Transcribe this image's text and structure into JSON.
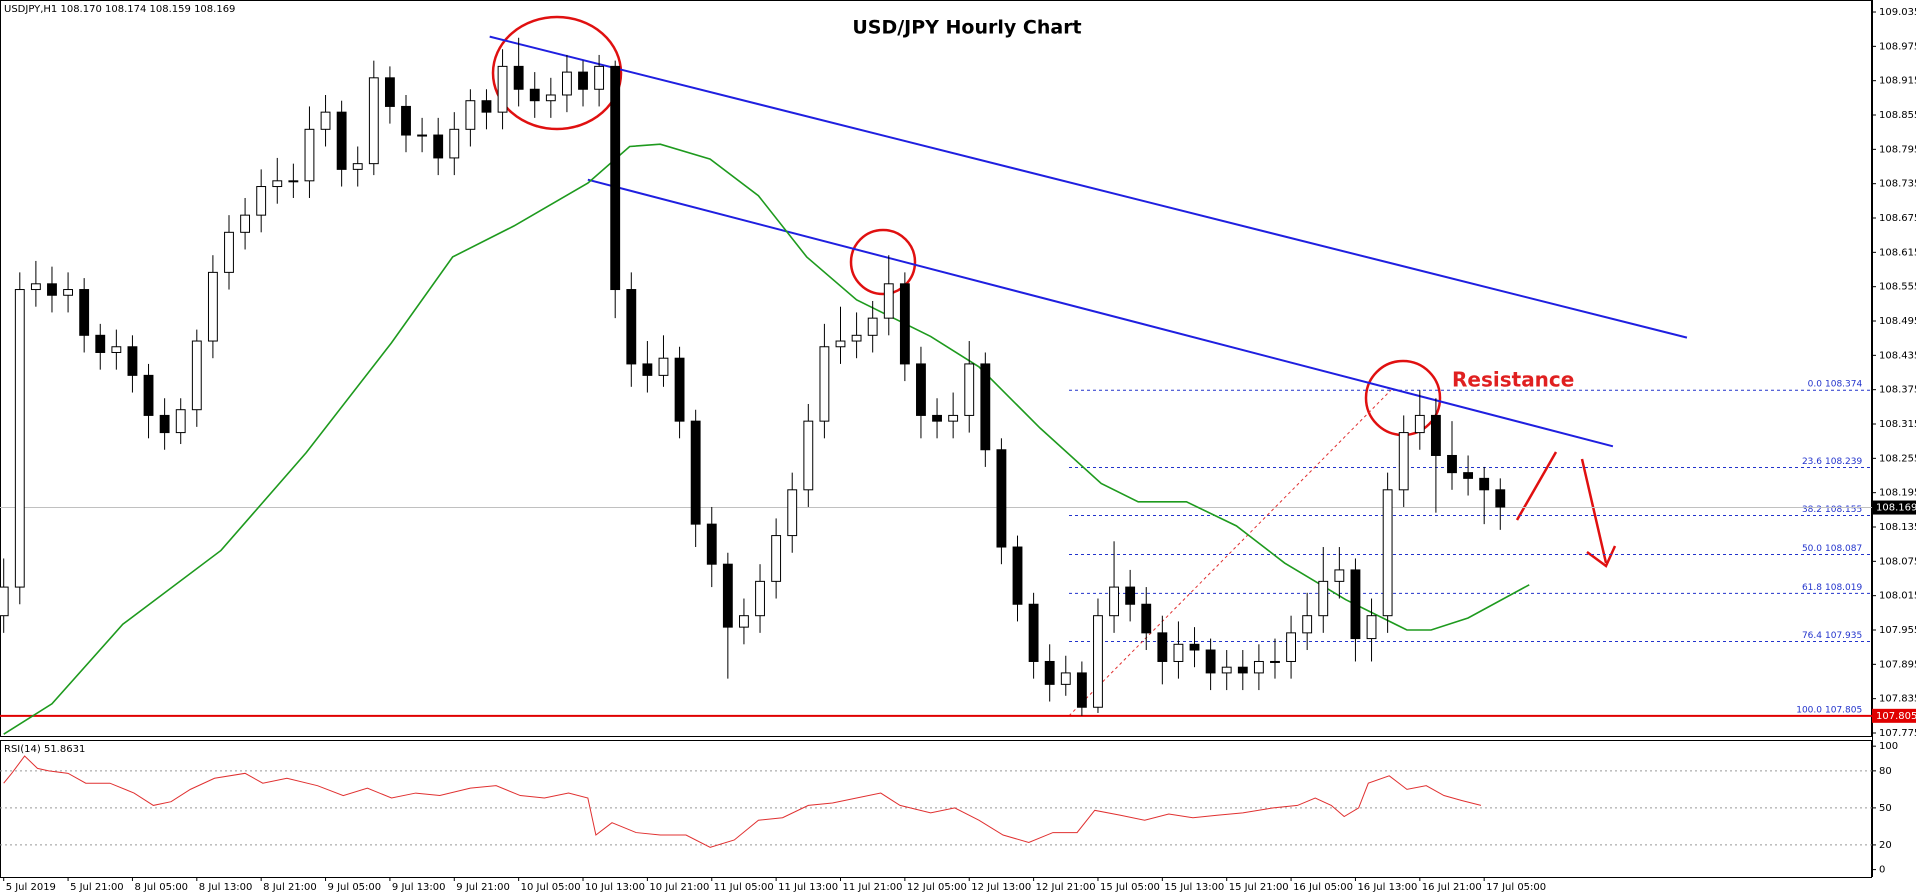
{
  "chart_data": {
    "type": "candlestick",
    "title": "USD/JPY Hourly Chart",
    "header": "USDJPY,H1  108.170 108.174 108.159 108.169",
    "x": [
      0,
      1,
      2,
      3,
      4,
      5,
      6,
      7,
      8,
      9,
      10,
      11,
      12,
      13,
      14,
      15,
      16,
      17,
      18,
      19,
      20,
      21,
      22,
      23,
      24,
      25,
      26,
      27,
      28,
      29,
      30,
      31,
      32,
      33,
      34,
      35,
      36,
      37,
      38,
      39,
      40,
      41,
      42,
      43,
      44,
      45,
      46,
      47,
      48,
      49,
      50,
      51,
      52,
      53,
      54,
      55,
      56,
      57,
      58,
      59,
      60,
      61,
      62,
      63,
      64,
      65,
      66,
      67,
      68,
      69,
      70,
      71,
      72,
      73,
      74,
      75,
      76,
      77,
      78,
      79,
      80,
      81,
      82,
      83,
      84,
      85,
      86,
      87,
      88,
      89,
      90,
      91,
      92,
      93
    ],
    "open": [
      107.98,
      108.03,
      108.55,
      108.56,
      108.54,
      108.55,
      108.47,
      108.44,
      108.45,
      108.4,
      108.33,
      108.3,
      108.34,
      108.46,
      108.58,
      108.65,
      108.68,
      108.73,
      108.74,
      108.74,
      108.83,
      108.86,
      108.76,
      108.77,
      108.92,
      108.87,
      108.82,
      108.82,
      108.78,
      108.83,
      108.88,
      108.86,
      108.94,
      108.9,
      108.88,
      108.89,
      108.93,
      108.9,
      108.94,
      108.55,
      108.42,
      108.4,
      108.43,
      108.32,
      108.14,
      108.07,
      107.96,
      107.98,
      108.04,
      108.12,
      108.2,
      108.32,
      108.45,
      108.46,
      108.47,
      108.5,
      108.56,
      108.42,
      108.33,
      108.32,
      108.33,
      108.42,
      108.27,
      108.1,
      108.0,
      107.9,
      107.86,
      107.88,
      107.82,
      107.98,
      108.03,
      108.0,
      107.95,
      107.9,
      107.93,
      107.92,
      107.88,
      107.89,
      107.88,
      107.9,
      107.9,
      107.95,
      107.98,
      108.04,
      108.06,
      107.94,
      107.98,
      108.2,
      108.3,
      108.33,
      108.26,
      108.23,
      108.22,
      108.2
    ],
    "high": [
      108.08,
      108.58,
      108.6,
      108.59,
      108.58,
      108.57,
      108.49,
      108.48,
      108.47,
      108.42,
      108.36,
      108.36,
      108.48,
      108.61,
      108.68,
      108.71,
      108.76,
      108.78,
      108.77,
      108.87,
      108.89,
      108.88,
      108.8,
      108.95,
      108.94,
      108.89,
      108.85,
      108.85,
      108.86,
      108.9,
      108.9,
      108.97,
      108.99,
      108.93,
      108.92,
      108.96,
      108.95,
      108.96,
      108.95,
      108.58,
      108.46,
      108.47,
      108.45,
      108.34,
      108.17,
      108.09,
      108.01,
      108.07,
      108.15,
      108.23,
      108.35,
      108.49,
      108.52,
      108.51,
      108.53,
      108.61,
      108.58,
      108.45,
      108.36,
      108.37,
      108.46,
      108.44,
      108.29,
      108.12,
      108.02,
      107.93,
      107.91,
      107.9,
      108.01,
      108.11,
      108.06,
      108.03,
      107.98,
      107.97,
      107.96,
      107.94,
      107.92,
      107.92,
      107.93,
      107.94,
      107.98,
      108.02,
      108.1,
      108.1,
      108.08,
      108.01,
      108.23,
      108.33,
      108.374,
      108.36,
      108.32,
      108.26,
      108.24,
      108.22
    ],
    "low": [
      107.95,
      108.0,
      108.52,
      108.51,
      108.51,
      108.44,
      108.41,
      108.41,
      108.37,
      108.29,
      108.27,
      108.28,
      108.31,
      108.43,
      108.55,
      108.62,
      108.65,
      108.7,
      108.71,
      108.71,
      108.8,
      108.73,
      108.73,
      108.75,
      108.84,
      108.79,
      108.79,
      108.75,
      108.75,
      108.8,
      108.83,
      108.83,
      108.87,
      108.85,
      108.85,
      108.86,
      108.87,
      108.87,
      108.5,
      108.38,
      108.37,
      108.38,
      108.29,
      108.1,
      108.03,
      107.87,
      107.93,
      107.95,
      108.01,
      108.09,
      108.17,
      108.29,
      108.42,
      108.43,
      108.44,
      108.47,
      108.39,
      108.29,
      108.29,
      108.29,
      108.3,
      108.24,
      108.07,
      107.97,
      107.87,
      107.83,
      107.84,
      107.805,
      107.81,
      107.95,
      107.97,
      107.92,
      107.86,
      107.87,
      107.89,
      107.85,
      107.85,
      107.85,
      107.85,
      107.87,
      107.87,
      107.92,
      107.95,
      108.01,
      107.9,
      107.9,
      107.95,
      108.17,
      108.27,
      108.16,
      108.2,
      108.19,
      108.14,
      108.13
    ],
    "close": [
      108.03,
      108.55,
      108.56,
      108.54,
      108.55,
      108.47,
      108.44,
      108.45,
      108.4,
      108.33,
      108.3,
      108.34,
      108.46,
      108.58,
      108.65,
      108.68,
      108.73,
      108.74,
      108.74,
      108.83,
      108.86,
      108.76,
      108.77,
      108.92,
      108.87,
      108.82,
      108.82,
      108.78,
      108.83,
      108.88,
      108.86,
      108.94,
      108.9,
      108.88,
      108.89,
      108.93,
      108.9,
      108.94,
      108.55,
      108.42,
      108.4,
      108.43,
      108.32,
      108.14,
      108.07,
      107.96,
      107.98,
      108.04,
      108.12,
      108.2,
      108.32,
      108.45,
      108.46,
      108.47,
      108.5,
      108.56,
      108.42,
      108.33,
      108.32,
      108.33,
      108.42,
      108.27,
      108.1,
      108.0,
      107.9,
      107.86,
      107.88,
      107.82,
      107.98,
      108.03,
      108.0,
      107.95,
      107.9,
      107.93,
      107.92,
      107.88,
      107.89,
      107.88,
      107.9,
      107.9,
      107.95,
      107.98,
      108.04,
      108.06,
      107.94,
      107.98,
      108.2,
      108.3,
      108.33,
      108.26,
      108.23,
      108.22,
      108.2,
      108.17
    ],
    "up_color": "#ffffff",
    "down_color": "#000000",
    "xlim": [
      -0.23,
      116.1
    ],
    "xticks": [
      {
        "value": 0,
        "label": "5 Jul 2019"
      },
      {
        "value": 4,
        "label": "5 Jul 21:00"
      },
      {
        "value": 8,
        "label": "8 Jul 05:00"
      },
      {
        "value": 12,
        "label": "8 Jul 13:00"
      },
      {
        "value": 16,
        "label": "8 Jul 21:00"
      },
      {
        "value": 20,
        "label": "9 Jul 05:00"
      },
      {
        "value": 24,
        "label": "9 Jul 13:00"
      },
      {
        "value": 28,
        "label": "9 Jul 21:00"
      },
      {
        "value": 32,
        "label": "10 Jul 05:00"
      },
      {
        "value": 36,
        "label": "10 Jul 13:00"
      },
      {
        "value": 40,
        "label": "10 Jul 21:00"
      },
      {
        "value": 44,
        "label": "11 Jul 05:00"
      },
      {
        "value": 48,
        "label": "11 Jul 13:00"
      },
      {
        "value": 52,
        "label": "11 Jul 21:00"
      },
      {
        "value": 56,
        "label": "12 Jul 05:00"
      },
      {
        "value": 60,
        "label": "12 Jul 13:00"
      },
      {
        "value": 64,
        "label": "12 Jul 21:00"
      },
      {
        "value": 68,
        "label": "15 Jul 05:00"
      },
      {
        "value": 72,
        "label": "15 Jul 13:00"
      },
      {
        "value": 76,
        "label": "15 Jul 21:00"
      },
      {
        "value": 80,
        "label": "16 Jul 05:00"
      },
      {
        "value": 84,
        "label": "16 Jul 13:00"
      },
      {
        "value": 88,
        "label": "16 Jul 21:00"
      },
      {
        "value": 92,
        "label": "17 Jul 05:00"
      }
    ],
    "ylim": [
      107.768,
      109.056
    ],
    "yticks": [
      109.035,
      108.975,
      108.915,
      108.855,
      108.795,
      108.735,
      108.675,
      108.615,
      108.555,
      108.495,
      108.435,
      108.375,
      108.315,
      108.255,
      108.195,
      108.135,
      108.075,
      108.015,
      107.955,
      107.895,
      107.835,
      107.775
    ],
    "current_price": 108.169,
    "ma": {
      "color": "#1e9a1e",
      "x": [
        0,
        3,
        7.4,
        13.5,
        18.8,
        24.1,
        27.9,
        31.7,
        36.3,
        38.9,
        40.8,
        43.9,
        46.9,
        49.9,
        53,
        57.6,
        60.6,
        64.4,
        68.2,
        70.5,
        73.5,
        76.6,
        79.6,
        83.4,
        87.2,
        88.7,
        91,
        94.8
      ],
      "values": [
        107.773,
        107.826,
        107.965,
        108.094,
        108.265,
        108.457,
        108.607,
        108.661,
        108.736,
        108.8,
        108.804,
        108.778,
        108.714,
        108.607,
        108.532,
        108.468,
        108.415,
        108.308,
        108.211,
        108.179,
        108.179,
        108.137,
        108.072,
        108.008,
        107.955,
        107.955,
        107.976,
        108.034
      ]
    },
    "trend_color": "#1f1fe0",
    "trendlines": [
      {
        "x": [
          30.2,
          104.6
        ],
        "values": [
          108.992,
          108.466
        ]
      },
      {
        "x": [
          36.3,
          100
        ],
        "values": [
          108.742,
          108.276
        ]
      }
    ],
    "support": {
      "value": 107.805,
      "color": "#e00000"
    },
    "fib": {
      "color": "#2233cc",
      "x": [
        66.2,
        86.2
      ],
      "levels": [
        {
          "label": "0.0",
          "value": 108.374
        },
        {
          "label": "23.6",
          "value": 108.239
        },
        {
          "label": "38.2",
          "value": 108.155
        },
        {
          "label": "50.0",
          "value": 108.087
        },
        {
          "label": "61.8",
          "value": 108.019
        },
        {
          "label": "76.4",
          "value": 107.935
        },
        {
          "label": "100.0",
          "value": 107.805
        }
      ]
    },
    "annotation": "Resistance",
    "rsi": {
      "label": "RSI(14) 51.8631",
      "color": "#e03030",
      "x": [
        0,
        0.5,
        1.3,
        2.1,
        2.8,
        4.0,
        5.1,
        6.6,
        8.1,
        9.3,
        10.4,
        11.6,
        13.1,
        15.0,
        16.1,
        17.6,
        19.5,
        21.1,
        22.6,
        24.1,
        25.6,
        27.1,
        29.0,
        30.6,
        32.1,
        33.6,
        35.1,
        36.3,
        36.8,
        37.8,
        39.3,
        40.8,
        42.4,
        43.9,
        45.4,
        46.9,
        48.4,
        50.0,
        51.5,
        53.0,
        54.5,
        55.7,
        57.6,
        59.1,
        60.6,
        62.1,
        63.7,
        65.2,
        66.7,
        67.8,
        69.4,
        70.9,
        72.4,
        73.9,
        75.4,
        77.0,
        78.9,
        80.4,
        81.5,
        82.5,
        83.3,
        84.2,
        84.8,
        86.1,
        87.2,
        88.4,
        89.5,
        90.6,
        91.8
      ],
      "values": [
        70,
        78,
        92,
        82,
        80,
        78,
        70,
        70,
        62,
        52,
        55,
        65,
        74,
        78,
        70,
        74,
        68,
        60,
        66,
        58,
        62,
        60,
        66,
        68,
        60,
        58,
        62,
        58,
        28,
        38,
        30,
        28,
        28,
        18,
        24,
        40,
        42,
        52,
        54,
        58,
        62,
        52,
        46,
        50,
        40,
        28,
        22,
        30,
        30,
        48,
        44,
        40,
        45,
        42,
        44,
        46,
        50,
        52,
        58,
        52,
        43,
        50,
        70,
        76,
        65,
        68,
        60,
        56,
        52
      ],
      "ylim": [
        -6,
        105
      ],
      "yticks": [
        100,
        80,
        50,
        20,
        0
      ],
      "levels": [
        80,
        50,
        20
      ]
    }
  }
}
